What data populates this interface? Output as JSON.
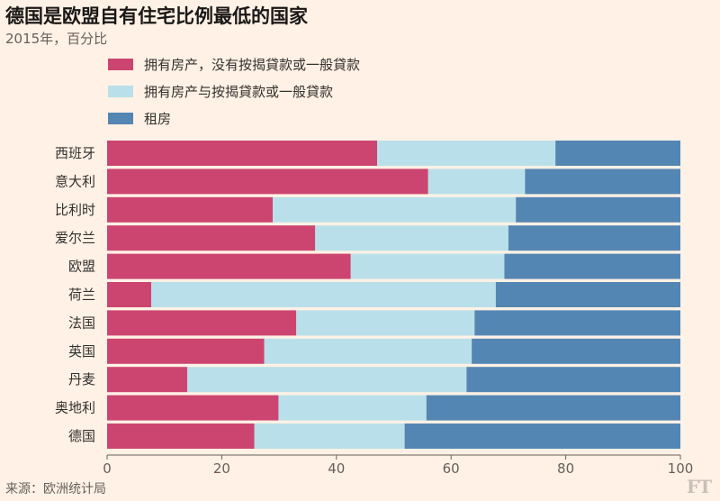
{
  "title": "德国是欧盟自有住宅比例最低的国家",
  "subtitle": "2015年，百分比",
  "source": "来源：欧洲统计局",
  "logo": "FT",
  "colors": {
    "owner_outright": "#cc4570",
    "owner_mortgage": "#b9e0ea",
    "renter": "#5486b3",
    "background": "#fff1e5"
  },
  "chart_data": {
    "type": "bar",
    "orientation": "horizontal",
    "stacked": true,
    "categories": [
      "西班牙",
      "意大利",
      "比利时",
      "爱尔兰",
      "欧盟",
      "荷兰",
      "法国",
      "英国",
      "丹麦",
      "奥地利",
      "德国"
    ],
    "series": [
      {
        "name": "拥有房产，没有按揭貸款或一般貸款",
        "values": [
          47.1,
          56.0,
          28.9,
          36.3,
          42.5,
          7.7,
          33.0,
          27.4,
          14.0,
          29.9,
          25.7
        ]
      },
      {
        "name": "拥有房产与按揭貸款或一般貸款",
        "values": [
          31.1,
          16.9,
          42.4,
          33.7,
          26.8,
          60.1,
          31.1,
          36.2,
          48.7,
          25.8,
          26.2
        ]
      },
      {
        "name": "租房",
        "values": [
          21.8,
          27.1,
          28.7,
          30.0,
          30.7,
          32.2,
          35.9,
          36.4,
          37.3,
          44.3,
          48.1
        ]
      }
    ],
    "xlim": [
      0,
      100
    ],
    "xticks": [
      0,
      20,
      40,
      60,
      80,
      100
    ],
    "grid": false,
    "legend_position": "top-left"
  }
}
